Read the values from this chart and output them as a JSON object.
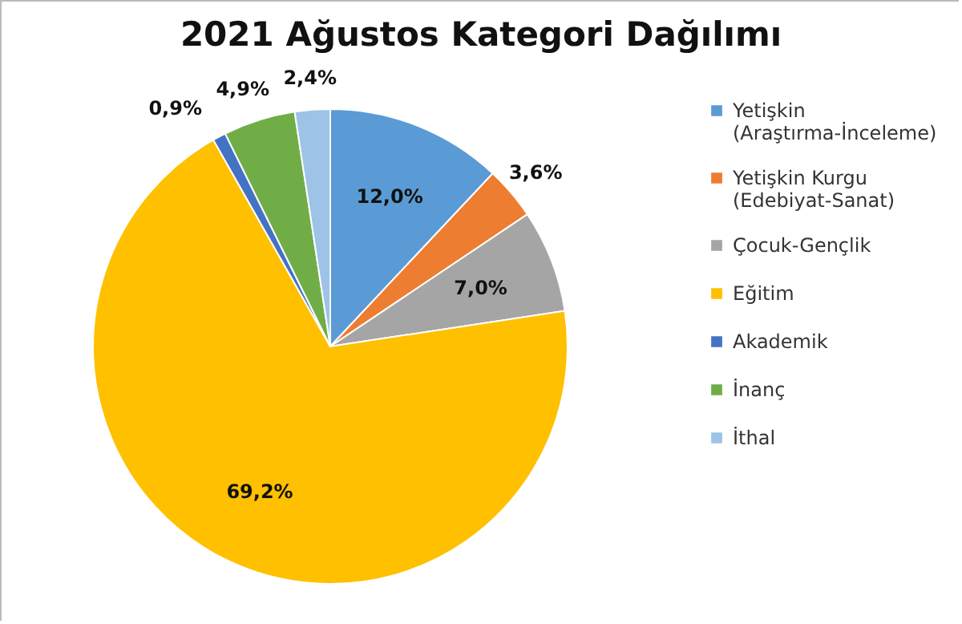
{
  "chart_data": {
    "type": "pie",
    "title": "2021 Ağustos Kategori Dağılımı",
    "categories": [
      "Yetişkin (Araştırma-İnceleme)",
      "Yetişkin Kurgu (Edebiyat-Sanat)",
      "Çocuk-Gençlik",
      "Eğitim",
      "Akademik",
      "İnanç",
      "İthal"
    ],
    "values": [
      12.0,
      3.6,
      7.0,
      69.2,
      0.9,
      4.9,
      2.4
    ],
    "value_labels": [
      "12,0%",
      "3,6%",
      "7,0%",
      "69,2%",
      "0,9%",
      "4,9%",
      "2,4%"
    ],
    "colors": [
      "#5b9bd5",
      "#ed7d31",
      "#a5a5a5",
      "#ffc000",
      "#4472c4",
      "#70ad47",
      "#9dc3e6"
    ],
    "legend": "right"
  }
}
